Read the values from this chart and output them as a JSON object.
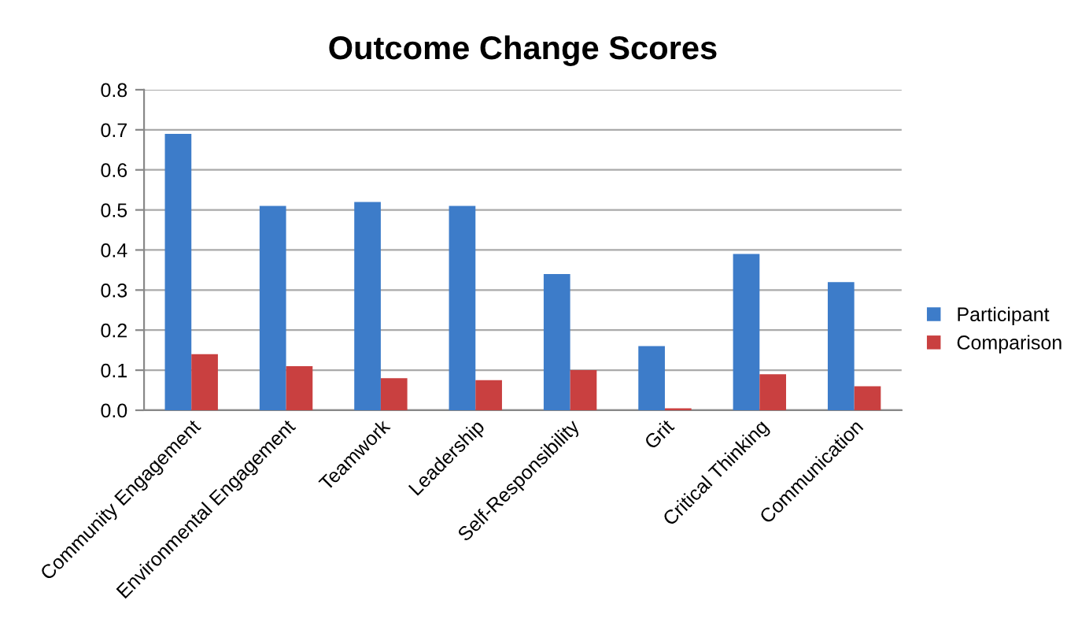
{
  "chart_data": {
    "type": "bar",
    "title": "Outcome Change Scores",
    "categories": [
      "Community Engagement",
      "Environmental Engagement",
      "Teamwork",
      "Leadership",
      "Self-Responsibility",
      "Grit",
      "Critical Thinking",
      "Communication"
    ],
    "series": [
      {
        "name": "Participant",
        "color": "#3d7cc9",
        "values": [
          0.69,
          0.51,
          0.52,
          0.51,
          0.34,
          0.16,
          0.39,
          0.32
        ]
      },
      {
        "name": "Comparison",
        "color": "#c94040",
        "values": [
          0.14,
          0.11,
          0.08,
          0.075,
          0.1,
          0.005,
          0.09,
          0.06
        ]
      }
    ],
    "ylim": [
      0,
      0.8
    ],
    "yticks": [
      {
        "value": 0,
        "label": "0.0"
      },
      0.1,
      0.2,
      0.3,
      0.4,
      0.5,
      0.6,
      0.7,
      0.8
    ],
    "grid": "y",
    "legend": "right"
  }
}
